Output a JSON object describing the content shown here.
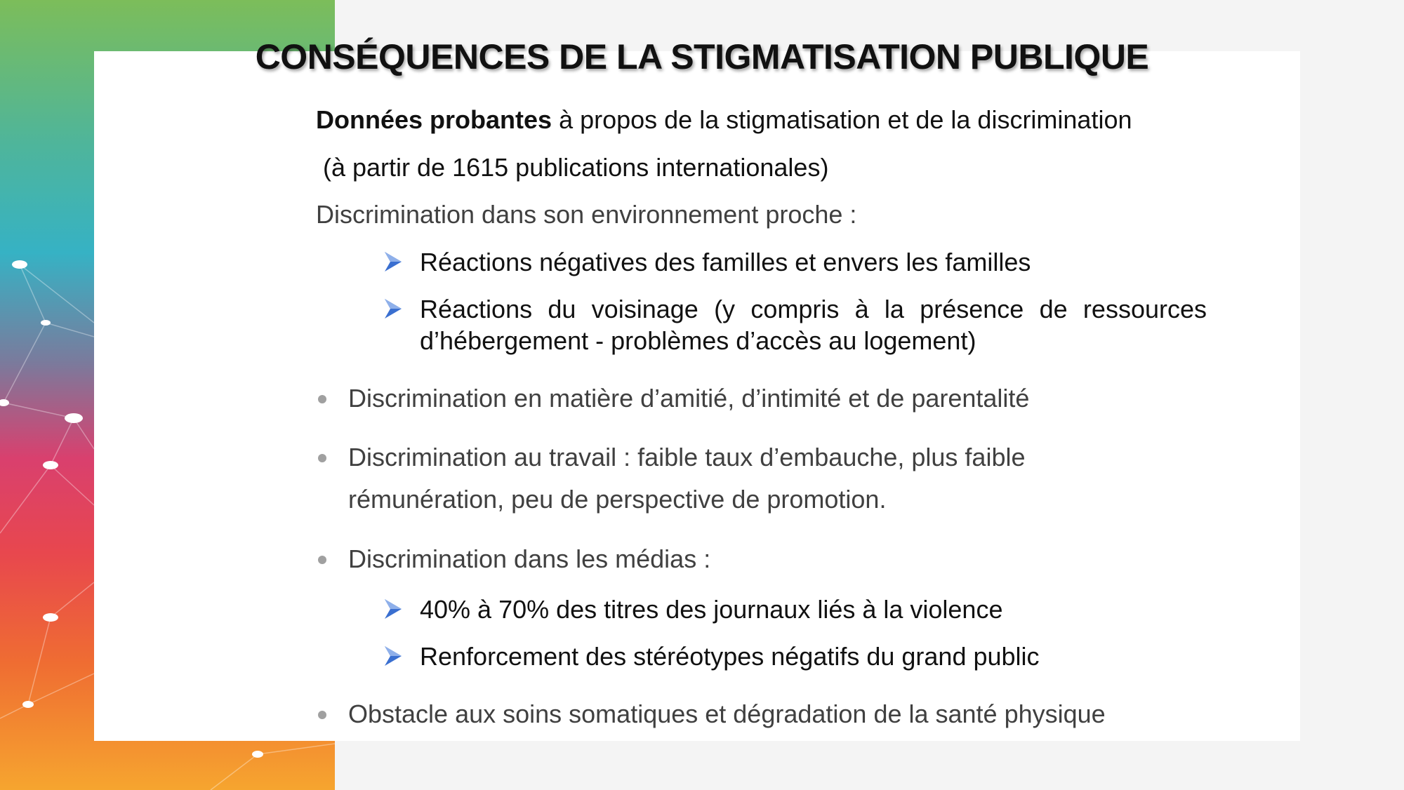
{
  "title": "CONSÉQUENCES DE LA STIGMATISATION PUBLIQUE",
  "intro": {
    "bold": "Données probantes",
    "rest": " à propos de la stigmatisation et de la discrimination",
    "line2": " (à partir de 1615 publications internationales)"
  },
  "section1": {
    "heading": "Discrimination dans son environnement proche :",
    "items": [
      "Réactions négatives des familles et envers les familles",
      "Réactions du voisinage (y compris à la présence de ressources",
      "d’hébergement - problèmes d’accès au logement)"
    ]
  },
  "bullets": [
    "Discrimination en matière d’amitié, d’intimité et de parentalité",
    "Discrimination au travail : faible taux d’embauche, plus faible",
    "rémunération, peu de perspective de promotion.",
    "Discrimination dans les médias :",
    "Obstacle aux soins somatiques et dégradation de la santé physique"
  ],
  "media_items": [
    "40% à 70% des titres des journaux liés à la violence",
    "Renforcement des stéréotypes négatifs du grand public"
  ],
  "colors": {
    "arrow": "#3a6fd0",
    "bullet": "#a0a0a0",
    "text_gray": "#404040"
  },
  "icons": {
    "sub_bullet": "arrow-bullet-icon",
    "bullet": "dot-bullet-icon"
  }
}
